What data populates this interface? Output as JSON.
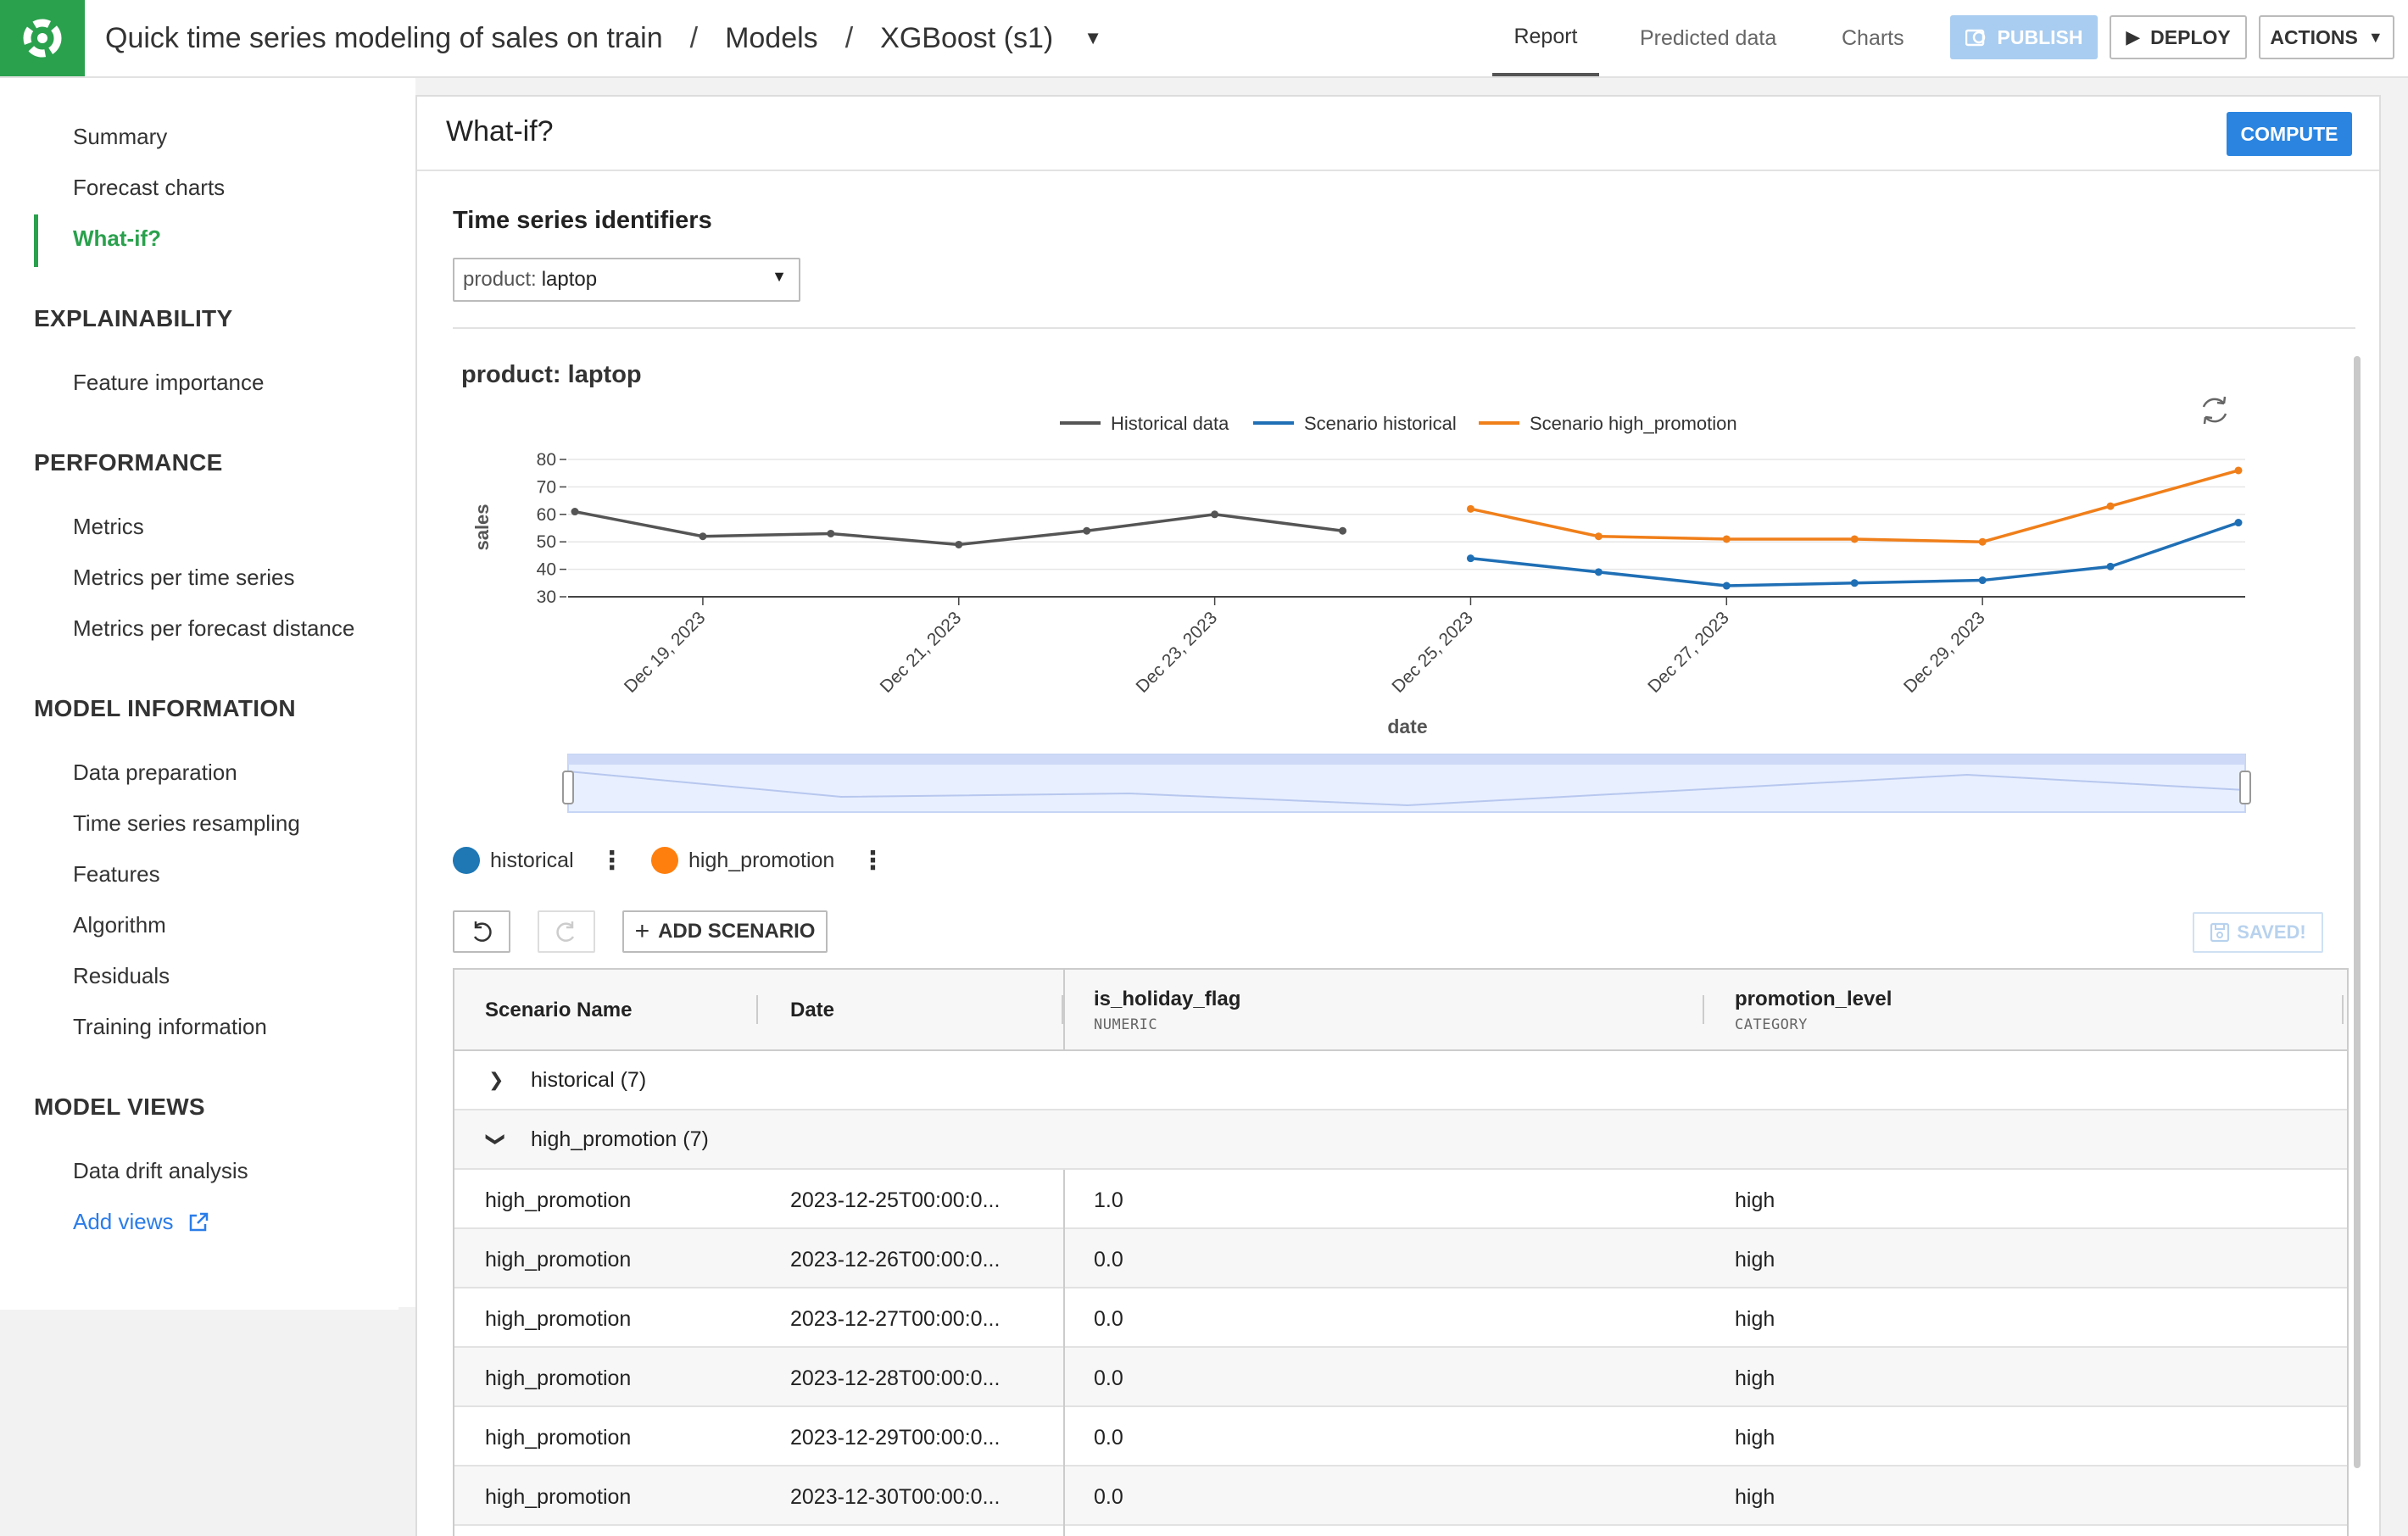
{
  "header": {
    "title": "Quick time series modeling of sales on train",
    "crumb_models": "Models",
    "crumb_model": "XGBoost (s1)",
    "tabs": [
      "Report",
      "Predicted data",
      "Charts"
    ],
    "publish_label": "PUBLISH",
    "deploy_label": "DEPLOY",
    "actions_label": "ACTIONS"
  },
  "sidebar": {
    "top_items": [
      "Summary",
      "Forecast charts",
      "What-if?"
    ],
    "sections": [
      {
        "title": "EXPLAINABILITY",
        "items": [
          "Feature importance"
        ]
      },
      {
        "title": "PERFORMANCE",
        "items": [
          "Metrics",
          "Metrics per time series",
          "Metrics per forecast distance"
        ]
      },
      {
        "title": "MODEL INFORMATION",
        "items": [
          "Data preparation",
          "Time series resampling",
          "Features",
          "Algorithm",
          "Residuals",
          "Training information"
        ]
      },
      {
        "title": "MODEL VIEWS",
        "items": [
          "Data drift analysis"
        ]
      }
    ],
    "add_views": "Add views"
  },
  "panel": {
    "title": "What-if?",
    "compute_label": "COMPUTE",
    "ts_label": "Time series identifiers",
    "ts_key": "product:",
    "ts_value": "laptop"
  },
  "chart_data": {
    "type": "line",
    "title": "product: laptop",
    "xlabel": "date",
    "ylabel": "sales",
    "ylim": [
      30,
      80
    ],
    "yticks": [
      30,
      40,
      50,
      60,
      70,
      80
    ],
    "xticks": [
      "Dec 19, 2023",
      "Dec 21, 2023",
      "Dec 23, 2023",
      "Dec 25, 2023",
      "Dec 27, 2023",
      "Dec 29, 2023"
    ],
    "legend": "top-center",
    "series": [
      {
        "name": "Historical data",
        "color": "#555555",
        "x": [
          "2023-12-18",
          "2023-12-19",
          "2023-12-20",
          "2023-12-21",
          "2023-12-22",
          "2023-12-23",
          "2023-12-24"
        ],
        "values": [
          61,
          52,
          53,
          49,
          54,
          60,
          54
        ]
      },
      {
        "name": "Scenario historical",
        "color": "#1f6fb5",
        "x": [
          "2023-12-25",
          "2023-12-26",
          "2023-12-27",
          "2023-12-28",
          "2023-12-29",
          "2023-12-30",
          "2023-12-31"
        ],
        "values": [
          44,
          39,
          34,
          35,
          36,
          41,
          57
        ]
      },
      {
        "name": "Scenario high_promotion",
        "color": "#f07f1a",
        "x": [
          "2023-12-25",
          "2023-12-26",
          "2023-12-27",
          "2023-12-28",
          "2023-12-29",
          "2023-12-30",
          "2023-12-31"
        ],
        "values": [
          62,
          52,
          51,
          51,
          50,
          63,
          76
        ]
      }
    ]
  },
  "scenarios": [
    {
      "name": "historical",
      "color": "#1f77b4"
    },
    {
      "name": "high_promotion",
      "color": "#ff7f0e"
    }
  ],
  "toolbar": {
    "add_label": "ADD SCENARIO",
    "saved_label": "SAVED!"
  },
  "table": {
    "columns": [
      {
        "label": "Scenario Name",
        "sub": ""
      },
      {
        "label": "Date",
        "sub": ""
      },
      {
        "label": "is_holiday_flag",
        "sub": "NUMERIC"
      },
      {
        "label": "promotion_level",
        "sub": "CATEGORY"
      }
    ],
    "groups": [
      {
        "label": "historical (7)",
        "expanded": false
      },
      {
        "label": "high_promotion (7)",
        "expanded": true
      }
    ],
    "rows": [
      [
        "high_promotion",
        "2023-12-25T00:00:0...",
        "1.0",
        "high"
      ],
      [
        "high_promotion",
        "2023-12-26T00:00:0...",
        "0.0",
        "high"
      ],
      [
        "high_promotion",
        "2023-12-27T00:00:0...",
        "0.0",
        "high"
      ],
      [
        "high_promotion",
        "2023-12-28T00:00:0...",
        "0.0",
        "high"
      ],
      [
        "high_promotion",
        "2023-12-29T00:00:0...",
        "0.0",
        "high"
      ],
      [
        "high_promotion",
        "2023-12-30T00:00:0...",
        "0.0",
        "high"
      ]
    ]
  }
}
